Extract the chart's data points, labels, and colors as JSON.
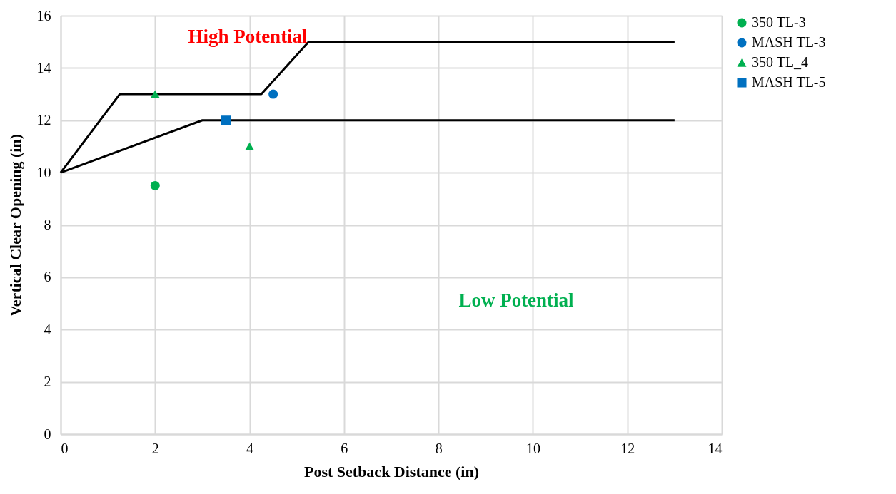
{
  "chart_data": {
    "type": "scatter",
    "xlabel": "Post Setback Distance (in)",
    "ylabel": "Vertical Clear Opening (in)",
    "xlim": [
      0,
      14
    ],
    "xticks": [
      0,
      2,
      4,
      6,
      8,
      10,
      12,
      14
    ],
    "ylim": [
      0,
      16
    ],
    "yticks": [
      0,
      2,
      4,
      6,
      8,
      10,
      12,
      14,
      16
    ],
    "grid": true,
    "legend": "right",
    "annotations": [
      "High Potential",
      "Low Potential"
    ],
    "series": [
      {
        "type": "line",
        "color": "#000000",
        "x": [
          0,
          1.25,
          4.25,
          5.25,
          13
        ],
        "values": [
          10,
          13,
          13,
          15,
          15
        ]
      },
      {
        "type": "line",
        "color": "#000000",
        "x": [
          0,
          3,
          13
        ],
        "values": [
          10,
          12,
          12
        ]
      },
      {
        "name": "350 TL-3",
        "color": "#00b050",
        "marker": "circle",
        "x": [
          2
        ],
        "values": [
          9.5
        ]
      },
      {
        "name": "MASH TL-3",
        "color": "#0070c0",
        "marker": "circle",
        "x": [
          4.5
        ],
        "values": [
          13
        ]
      },
      {
        "name": "350 TL_4",
        "color": "#00b050",
        "marker": "triangle",
        "x": [
          2,
          4
        ],
        "values": [
          13,
          11
        ]
      },
      {
        "name": "MASH TL-5",
        "color": "#0070c0",
        "marker": "square",
        "x": [
          3.5
        ],
        "values": [
          12
        ]
      }
    ]
  }
}
